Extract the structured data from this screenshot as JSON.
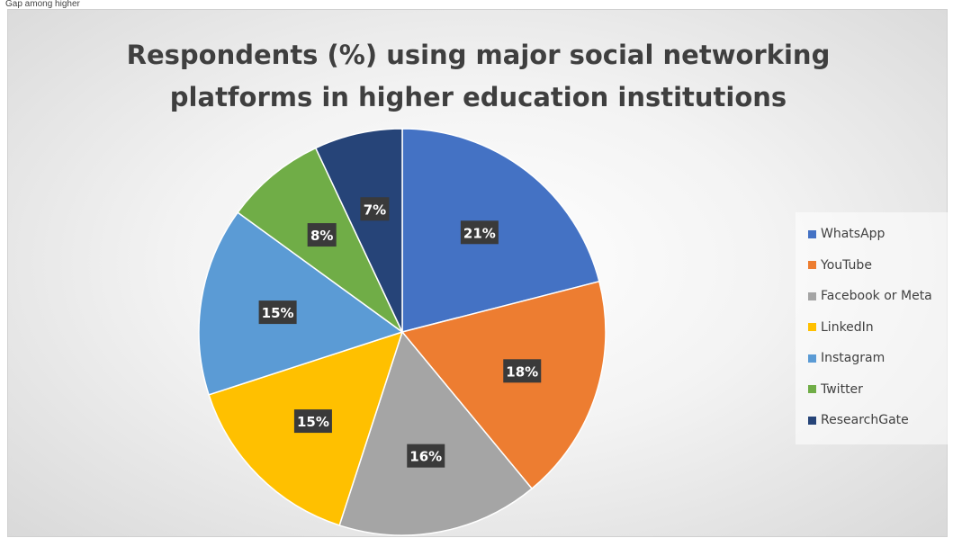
{
  "caption_fragment": "Gap among higher",
  "chart_data": {
    "type": "pie",
    "title_lines": [
      "Respondents (%) using major social networking",
      "platforms in higher education institutions"
    ],
    "categories": [
      "WhatsApp",
      "YouTube",
      "Facebook or Meta",
      "LinkedIn",
      "Instagram",
      "Twitter",
      "ResearchGate"
    ],
    "values": [
      21,
      18,
      16,
      15,
      15,
      8,
      7
    ],
    "labels": [
      "21%",
      "18%",
      "16%",
      "15%",
      "15%",
      "8%",
      "7%"
    ],
    "colors": [
      "#4472C4",
      "#ED7D31",
      "#A5A5A5",
      "#FFC000",
      "#5B9BD5",
      "#70AD47",
      "#264478"
    ],
    "legend_position": "right"
  }
}
